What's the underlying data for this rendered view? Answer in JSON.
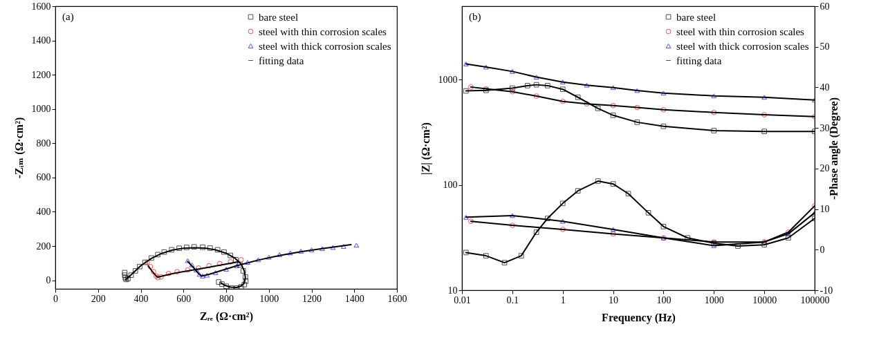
{
  "chart_data": [
    {
      "type": "scatter",
      "annotations": [
        "(a)"
      ],
      "xlabel": "Zᵣₑ (Ω·cm²)",
      "ylabel": "-Zᵢₘ (Ω·cm²)",
      "xlim": [
        0,
        1600
      ],
      "ylim": [
        -50,
        1600
      ],
      "xticks": [
        0,
        200,
        400,
        600,
        800,
        1000,
        1200,
        1400,
        1600
      ],
      "yticks": [
        0,
        200,
        400,
        600,
        800,
        1000,
        1200,
        1400,
        1600
      ],
      "legend": "top right",
      "series": [
        {
          "name": "bare steel",
          "type": "scatter",
          "marker": "square",
          "color": "#000000",
          "x": [
            325,
            325,
            328,
            332,
            340,
            355,
            375,
            395,
            420,
            450,
            480,
            510,
            545,
            580,
            615,
            650,
            690,
            725,
            760,
            790,
            820,
            845,
            865,
            880,
            890,
            892,
            885,
            870,
            850,
            825,
            800,
            780,
            765
          ],
          "values": [
            45,
            30,
            15,
            5,
            10,
            30,
            55,
            80,
            105,
            130,
            150,
            165,
            178,
            187,
            192,
            195,
            193,
            188,
            178,
            165,
            145,
            120,
            90,
            55,
            20,
            -5,
            -25,
            -38,
            -45,
            -45,
            -35,
            -22,
            -10
          ]
        },
        {
          "name": "steel with thin corrosion scales",
          "type": "scatter",
          "marker": "circle",
          "color": "#ff0000",
          "x": [
            430,
            445,
            460,
            472,
            480,
            495,
            530,
            570,
            620,
            670,
            720,
            770,
            820,
            870
          ],
          "values": [
            105,
            80,
            50,
            25,
            15,
            20,
            40,
            50,
            60,
            72,
            85,
            97,
            108,
            120
          ]
        },
        {
          "name": "steel with thick corrosion scales",
          "type": "scatter",
          "marker": "triangle",
          "color": "#0000ff",
          "x": [
            620,
            640,
            660,
            675,
            690,
            710,
            750,
            800,
            850,
            900,
            950,
            1000,
            1050,
            1100,
            1150,
            1200,
            1250,
            1300,
            1350,
            1410
          ],
          "values": [
            115,
            90,
            60,
            35,
            25,
            30,
            45,
            65,
            85,
            105,
            120,
            135,
            150,
            160,
            170,
            178,
            185,
            192,
            198,
            205
          ]
        },
        {
          "name": "fitting data",
          "type": "line",
          "color": "#000000",
          "x": [
            330,
            345,
            370,
            400,
            450,
            500,
            550,
            600,
            650,
            700,
            750,
            800,
            840,
            870,
            885,
            890,
            885,
            872,
            850,
            820,
            795,
            775,
            null,
            435,
            455,
            470,
            480,
            510,
            560,
            620,
            700,
            780,
            860,
            null,
            620,
            650,
            670,
            685,
            720,
            780,
            850,
            950,
            1050,
            1150,
            1250,
            1385
          ],
          "values": [
            5,
            20,
            50,
            85,
            128,
            158,
            177,
            187,
            190,
            188,
            178,
            158,
            130,
            95,
            55,
            15,
            -15,
            -32,
            -42,
            -40,
            -30,
            -15,
            null,
            85,
            50,
            28,
            18,
            28,
            42,
            55,
            72,
            90,
            108,
            null,
            110,
            70,
            40,
            25,
            35,
            58,
            85,
            118,
            145,
            167,
            185,
            208
          ]
        }
      ]
    },
    {
      "type": "scatter",
      "annotations": [
        "(b)"
      ],
      "xlabel": "Frequency (Hz)",
      "ylabel": "|Z| (Ω·cm²)",
      "y2label": "-Phase angle (Degree)",
      "log": "xy",
      "xlim": [
        0.01,
        100000
      ],
      "ylim": [
        10,
        5000
      ],
      "y2lim": [
        -10,
        60
      ],
      "xticks": [
        0.01,
        0.1,
        1,
        10,
        100,
        1000,
        10000,
        100000
      ],
      "yticks": [
        10,
        100,
        1000
      ],
      "y2ticks": [
        -10,
        0,
        10,
        20,
        30,
        40,
        50,
        60
      ],
      "legend": "top right",
      "series": [
        {
          "name": "bare steel",
          "type": "scatter",
          "marker": "square",
          "color": "#000000",
          "x": [
            0.012,
            0.03,
            0.1,
            0.2,
            0.3,
            0.5,
            1,
            2,
            5,
            10,
            30,
            100,
            1000,
            10000,
            100000
          ],
          "values": [
            783,
            794,
            833,
            880,
            897,
            880,
            812,
            682,
            535,
            460,
            395,
            361,
            329,
            323,
            323
          ]
        },
        {
          "name": "steel with thin corrosion scales",
          "type": "scatter",
          "marker": "circle",
          "color": "#ff0000",
          "x": [
            0.015,
            0.03,
            0.1,
            0.3,
            1,
            3,
            10,
            30,
            100,
            1000,
            10000,
            100000
          ],
          "values": [
            854,
            820,
            770,
            700,
            623,
            590,
            569,
            545,
            519,
            489,
            465,
            446
          ]
        },
        {
          "name": "steel with thick corrosion scales",
          "type": "scatter",
          "marker": "triangle",
          "color": "#0000ff",
          "x": [
            0.012,
            0.03,
            0.1,
            0.3,
            1,
            3,
            10,
            30,
            100,
            1000,
            10000,
            100000
          ],
          "values": [
            1414,
            1320,
            1200,
            1060,
            952,
            890,
            843,
            790,
            747,
            703,
            682,
            642
          ]
        },
        {
          "name": "fitting data",
          "type": "line",
          "color": "#000000",
          "x": [
            0.012,
            0.03,
            0.1,
            0.2,
            0.3,
            0.5,
            1,
            2,
            5,
            10,
            30,
            100,
            1000,
            10000,
            100000,
            null,
            0.015,
            0.03,
            0.1,
            0.3,
            1,
            3,
            10,
            30,
            100,
            1000,
            10000,
            100000,
            null,
            0.012,
            0.03,
            0.1,
            0.3,
            1,
            3,
            10,
            30,
            100,
            1000,
            10000,
            100000
          ],
          "values": [
            783,
            794,
            833,
            880,
            897,
            880,
            812,
            682,
            535,
            460,
            395,
            361,
            329,
            323,
            323,
            null,
            854,
            820,
            770,
            700,
            623,
            590,
            569,
            545,
            519,
            489,
            465,
            446,
            null,
            1414,
            1320,
            1200,
            1060,
            952,
            890,
            843,
            790,
            747,
            703,
            682,
            642
          ]
        },
        {
          "name": "bare steel",
          "type": "scatter",
          "marker": "square",
          "color": "#000000",
          "axis": "y2",
          "x": [
            0.012,
            0.03,
            0.07,
            0.15,
            0.3,
            0.5,
            1,
            2,
            5,
            10,
            20,
            50,
            100,
            300,
            1000,
            3000,
            10000,
            30000,
            100000
          ],
          "values": [
            -0.7,
            -1.5,
            -3.2,
            -1.5,
            4.3,
            7.7,
            11.4,
            14.5,
            16.9,
            16.2,
            13.8,
            9.1,
            5.7,
            2.9,
            1.6,
            0.9,
            1.2,
            2.9,
            7.7
          ]
        },
        {
          "name": "steel with thin corrosion scales",
          "type": "scatter",
          "marker": "circle",
          "color": "#ff0000",
          "axis": "y2",
          "x": [
            0.015,
            0.1,
            1,
            10,
            100,
            1000,
            10000,
            30000,
            100000
          ],
          "values": [
            7.0,
            6.0,
            5.0,
            3.9,
            2.9,
            1.9,
            1.9,
            4.3,
            10.8
          ]
        },
        {
          "name": "steel with thick corrosion scales",
          "type": "scatter",
          "marker": "triangle",
          "color": "#0000ff",
          "axis": "y2",
          "x": [
            0.012,
            0.1,
            1,
            10,
            100,
            1000,
            10000,
            30000,
            100000
          ],
          "values": [
            8.0,
            8.4,
            7.0,
            5.0,
            2.9,
            1.0,
            1.9,
            3.9,
            9.1
          ]
        },
        {
          "name": "fitting data",
          "type": "line",
          "color": "#000000",
          "axis": "y2",
          "x": [
            0.012,
            0.03,
            0.07,
            0.15,
            0.3,
            0.5,
            1,
            2,
            5,
            10,
            20,
            50,
            100,
            300,
            1000,
            3000,
            10000,
            30000,
            100000,
            null,
            0.015,
            0.1,
            1,
            10,
            100,
            1000,
            10000,
            30000,
            100000,
            null,
            0.012,
            0.1,
            1,
            10,
            100,
            1000,
            10000,
            30000,
            100000
          ],
          "values": [
            -0.7,
            -1.5,
            -3.2,
            -1.5,
            4.3,
            7.7,
            11.4,
            14.5,
            16.9,
            16.2,
            13.8,
            9.1,
            5.7,
            2.9,
            1.6,
            0.9,
            1.2,
            2.9,
            7.7,
            null,
            7.0,
            6.0,
            5.0,
            3.9,
            2.9,
            1.9,
            1.9,
            4.3,
            10.8,
            null,
            8.0,
            8.4,
            7.0,
            5.0,
            2.9,
            1.0,
            1.9,
            3.9,
            9.1
          ]
        }
      ]
    }
  ]
}
